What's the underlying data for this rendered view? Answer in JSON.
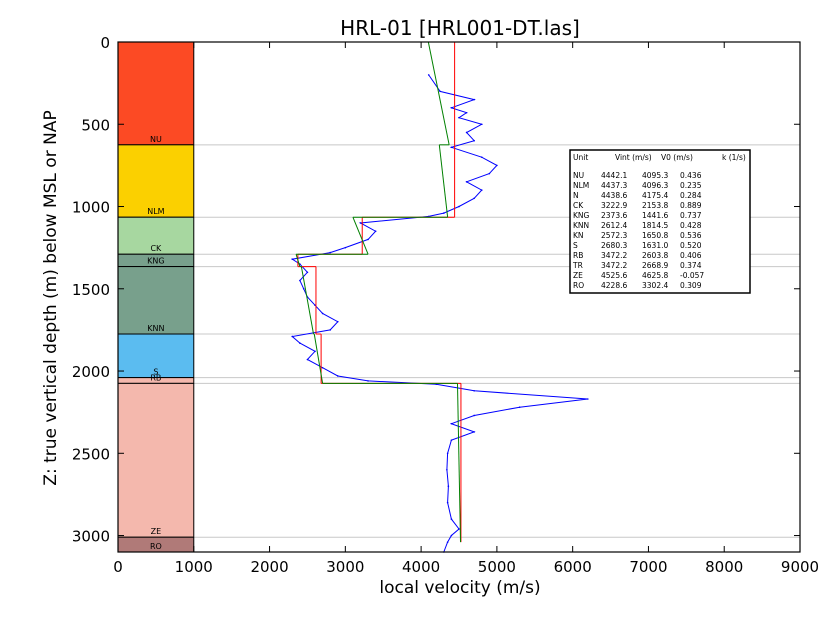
{
  "chart_data": {
    "type": "line",
    "title": "HRL-01 [HRL001-DT.las]",
    "xlabel": "local velocity (m/s)",
    "ylabel": "Z: true vertical depth (m) below MSL or NAP",
    "xlim": [
      0,
      9000
    ],
    "ylim": [
      3100,
      0
    ],
    "x_ticks": [
      "0",
      "1000",
      "2000",
      "3000",
      "4000",
      "5000",
      "6000",
      "7000",
      "8000",
      "9000"
    ],
    "y_ticks": [
      "0",
      "500",
      "1000",
      "1500",
      "2000",
      "2500",
      "3000"
    ],
    "units": [
      {
        "name": "NU",
        "top": 0,
        "base": 625,
        "color": "#fc4a24"
      },
      {
        "name": "NLM",
        "top": 625,
        "base": 1065,
        "color": "#fbd000"
      },
      {
        "name": "CK",
        "top": 1065,
        "base": 1290,
        "color": "#a7d7a0"
      },
      {
        "name": "KNG",
        "top": 1290,
        "base": 1365,
        "color": "#78a08c"
      },
      {
        "name": "KNN",
        "top": 1365,
        "base": 1775,
        "color": "#78a08c"
      },
      {
        "name": "S",
        "top": 1775,
        "base": 2040,
        "color": "#5bbcf0"
      },
      {
        "name": "RB",
        "top": 2040,
        "base": 2075,
        "color": "#f4b8ad"
      },
      {
        "name": "ZE",
        "top": 2075,
        "base": 3010,
        "color": "#f4b8ad"
      },
      {
        "name": "RO",
        "top": 3010,
        "base": 3100,
        "color": "#b07a78"
      }
    ],
    "series": [
      {
        "color": "#0000ff",
        "depth": [
          200,
          300,
          350,
          400,
          430,
          460,
          500,
          550,
          600,
          640,
          700,
          750,
          800,
          850,
          900,
          950,
          1000,
          1040,
          1060,
          1100,
          1150,
          1200,
          1250,
          1280,
          1320,
          1350,
          1400,
          1450,
          1500,
          1550,
          1600,
          1650,
          1700,
          1750,
          1790,
          1830,
          1880,
          1930,
          1980,
          2030,
          2060,
          2080,
          2120,
          2170,
          2220,
          2270,
          2320,
          2370,
          2420,
          2500,
          2600,
          2700,
          2800,
          2900,
          2960,
          3000,
          3040,
          3100
        ],
        "velocity": [
          4100,
          4250,
          4700,
          4400,
          4600,
          4500,
          4800,
          4600,
          4700,
          4400,
          4800,
          5000,
          4900,
          4600,
          4800,
          4700,
          4500,
          4300,
          4100,
          3200,
          3400,
          3300,
          3000,
          2800,
          2300,
          2400,
          2500,
          2400,
          2450,
          2500,
          2600,
          2700,
          2900,
          2800,
          2300,
          2400,
          2600,
          2500,
          2700,
          2900,
          3300,
          4200,
          4700,
          6200,
          5300,
          4700,
          4400,
          4700,
          4400,
          4350,
          4340,
          4360,
          4350,
          4400,
          4500,
          4400,
          4350,
          4300
        ]
      }
    ],
    "vint_lines": [
      {
        "v": 4442.1,
        "top": 0,
        "base": 1065
      },
      {
        "v": 3222.9,
        "top": 1065,
        "base": 1290
      },
      {
        "v": 2373.6,
        "top": 1290,
        "base": 1365
      },
      {
        "v": 2612.4,
        "top": 1365,
        "base": 1775
      },
      {
        "v": 2680.3,
        "top": 1775,
        "base": 2075
      },
      {
        "v": 4525.6,
        "top": 2075,
        "base": 3040
      }
    ],
    "trend_lines": [
      {
        "top": 0,
        "base": 625,
        "v_top": 4095.3,
        "v_base": 4370
      },
      {
        "top": 625,
        "base": 1065,
        "v_top": 4240,
        "v_base": 4350
      },
      {
        "top": 1065,
        "base": 1290,
        "v_top": 3100,
        "v_base": 3300
      },
      {
        "top": 1290,
        "base": 1365,
        "v_top": 2350,
        "v_base": 2400
      },
      {
        "top": 1365,
        "base": 1775,
        "v_top": 2420,
        "v_base": 2580
      },
      {
        "top": 1775,
        "base": 2075,
        "v_top": 2590,
        "v_base": 2700
      },
      {
        "top": 2075,
        "base": 3040,
        "v_top": 4480,
        "v_base": 4520
      }
    ],
    "table": {
      "headers": [
        "Unit",
        "Vint (m/s)",
        "V0 (m/s)",
        "k (1/s)"
      ],
      "rows": [
        [
          "NU",
          "4442.1",
          "4095.3",
          "0.436"
        ],
        [
          "NLM",
          "4437.3",
          "4096.3",
          "0.235"
        ],
        [
          "N",
          "4438.6",
          "4175.4",
          "0.284"
        ],
        [
          "CK",
          "3222.9",
          "2153.8",
          "0.889"
        ],
        [
          "KNG",
          "2373.6",
          "1441.6",
          "0.737"
        ],
        [
          "KNN",
          "2612.4",
          "1814.5",
          "0.428"
        ],
        [
          "KN",
          "2572.3",
          "1650.8",
          "0.536"
        ],
        [
          "S",
          "2680.3",
          "1631.0",
          "0.520"
        ],
        [
          "RB",
          "3472.2",
          "2603.8",
          "0.406"
        ],
        [
          "TR",
          "3472.2",
          "2668.9",
          "0.374"
        ],
        [
          "ZE",
          "4525.6",
          "4625.8",
          "-0.057"
        ],
        [
          "RO",
          "4228.6",
          "3302.4",
          "0.309"
        ]
      ]
    }
  }
}
